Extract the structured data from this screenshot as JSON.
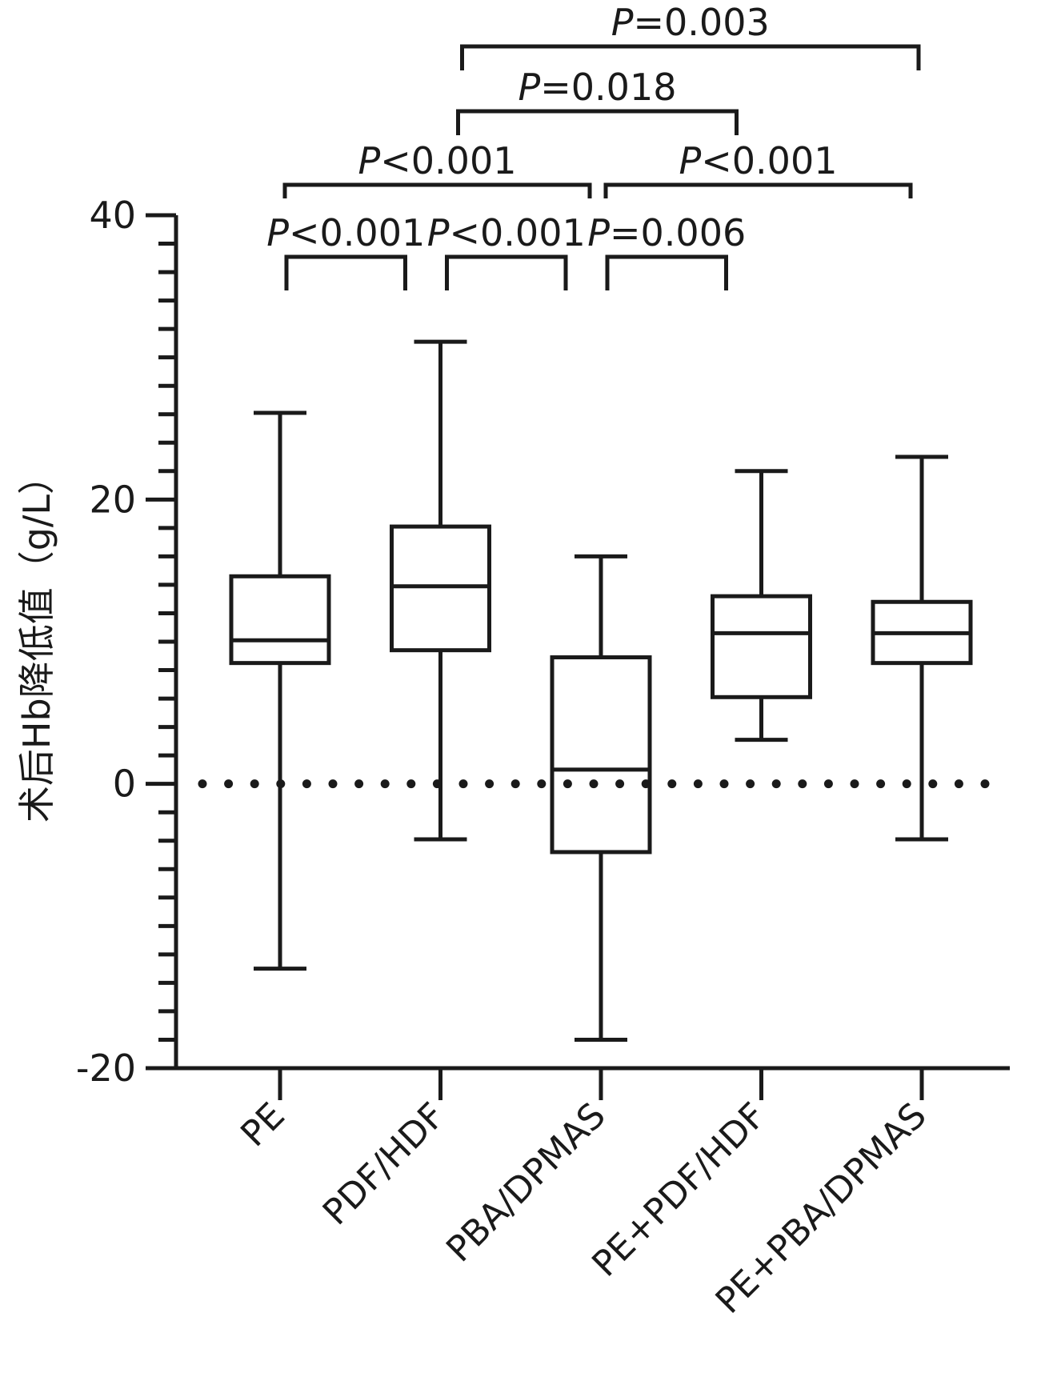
{
  "chart_data": {
    "type": "box",
    "title": "",
    "xlabel": "",
    "ylabel": "术后Hb降低值（g/L）",
    "ylim": [
      -20,
      40
    ],
    "yticks_major": [
      -20,
      0,
      20,
      40
    ],
    "ytick_labels": [
      "-20",
      "0",
      "20",
      "40"
    ],
    "ytick_minor_step": 2,
    "grid": false,
    "reference_line": {
      "y": 0,
      "style": "dotted"
    },
    "categories": [
      "PE",
      "PDF/HDF",
      "PBA/DPMAS",
      "PE+PDF/HDF",
      "PE+PBA/DPMAS"
    ],
    "boxes": [
      {
        "name": "PE",
        "min": -13.0,
        "q1": 8.5,
        "median": 10.1,
        "q3": 14.6,
        "max": 26.1
      },
      {
        "name": "PDF/HDF",
        "min": -3.9,
        "q1": 9.4,
        "median": 13.9,
        "q3": 18.1,
        "max": 31.1
      },
      {
        "name": "PBA/DPMAS",
        "min": -18.0,
        "q1": -4.8,
        "median": 1.0,
        "q3": 8.9,
        "max": 16.0
      },
      {
        "name": "PE+PDF/HDF",
        "min": 3.1,
        "q1": 6.1,
        "median": 10.6,
        "q3": 13.2,
        "max": 22.0
      },
      {
        "name": "PE+PBA/DPMAS",
        "min": -3.9,
        "q1": 8.5,
        "median": 10.6,
        "q3": 12.8,
        "max": 23.0
      }
    ],
    "comparisons": [
      {
        "from": 0,
        "to": 1,
        "level": 0,
        "p_symbol": "P",
        "p_rest": "<0.001"
      },
      {
        "from": 1,
        "to": 2,
        "level": 0,
        "p_symbol": "P",
        "p_rest": "<0.001"
      },
      {
        "from": 2,
        "to": 3,
        "level": 0,
        "p_symbol": "P",
        "p_rest": "=0.006"
      },
      {
        "from": 0,
        "to": 2,
        "level": 1,
        "p_symbol": "P",
        "p_rest": "<0.001"
      },
      {
        "from": 2,
        "to": 4,
        "level": 1,
        "p_symbol": "P",
        "p_rest": "<0.001"
      },
      {
        "from": 1,
        "to": 3,
        "level": 2,
        "p_symbol": "P",
        "p_rest": "=0.018"
      },
      {
        "from": 1,
        "to": 4,
        "level": 3,
        "p_symbol": "P",
        "p_rest": "=0.003"
      }
    ],
    "colors": {
      "line": "#1a1a1a",
      "box_fill": "#ffffff"
    }
  }
}
